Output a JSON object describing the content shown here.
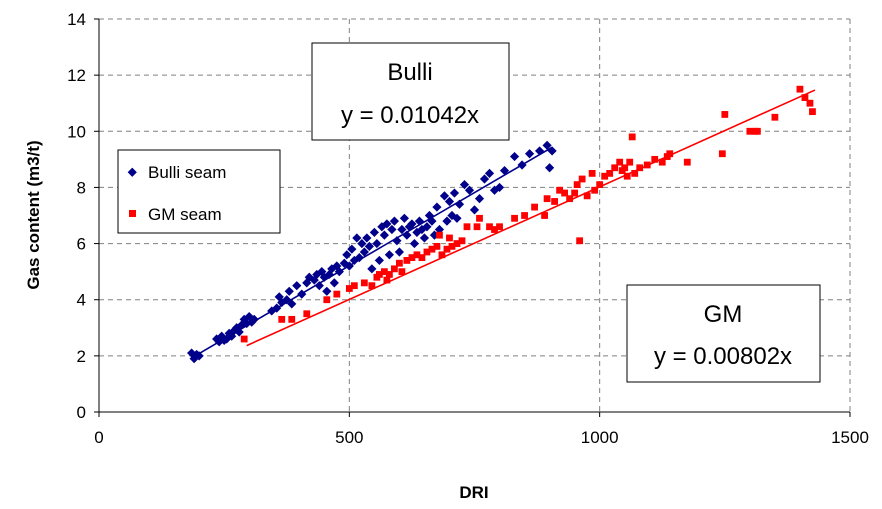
{
  "chart_data": {
    "type": "scatter",
    "xlabel": "DRI",
    "ylabel": "Gas content (m3/t)",
    "xlim": [
      0,
      1500
    ],
    "ylim": [
      0,
      14
    ],
    "x_ticks": [
      "0",
      "500",
      "1000",
      "1500"
    ],
    "y_ticks": [
      "0",
      "2",
      "4",
      "6",
      "8",
      "10",
      "12",
      "14"
    ],
    "grid": "dashed",
    "legend_position": "left",
    "series": [
      {
        "name": "Bulli seam",
        "marker": "diamond",
        "color": "#00008B",
        "trendline": {
          "slope": 0.01042,
          "x_range": [
            185,
            905
          ]
        },
        "points": [
          [
            185,
            2.1
          ],
          [
            190,
            1.9
          ],
          [
            195,
            2.05
          ],
          [
            200,
            2.0
          ],
          [
            235,
            2.6
          ],
          [
            240,
            2.5
          ],
          [
            245,
            2.7
          ],
          [
            250,
            2.55
          ],
          [
            255,
            2.6
          ],
          [
            260,
            2.8
          ],
          [
            265,
            2.7
          ],
          [
            270,
            2.9
          ],
          [
            275,
            3.0
          ],
          [
            280,
            2.85
          ],
          [
            285,
            3.1
          ],
          [
            290,
            3.3
          ],
          [
            295,
            3.15
          ],
          [
            300,
            3.4
          ],
          [
            305,
            3.2
          ],
          [
            310,
            3.3
          ],
          [
            345,
            3.6
          ],
          [
            355,
            3.7
          ],
          [
            360,
            4.1
          ],
          [
            365,
            3.9
          ],
          [
            375,
            4.0
          ],
          [
            380,
            4.3
          ],
          [
            385,
            3.85
          ],
          [
            395,
            4.5
          ],
          [
            405,
            4.2
          ],
          [
            415,
            4.6
          ],
          [
            420,
            4.8
          ],
          [
            430,
            4.7
          ],
          [
            435,
            4.9
          ],
          [
            440,
            4.5
          ],
          [
            445,
            5.0
          ],
          [
            450,
            4.8
          ],
          [
            455,
            4.3
          ],
          [
            460,
            4.9
          ],
          [
            465,
            5.1
          ],
          [
            470,
            4.6
          ],
          [
            475,
            5.2
          ],
          [
            480,
            5.0
          ],
          [
            490,
            5.3
          ],
          [
            495,
            5.6
          ],
          [
            500,
            5.2
          ],
          [
            505,
            5.8
          ],
          [
            510,
            5.4
          ],
          [
            515,
            6.2
          ],
          [
            520,
            5.5
          ],
          [
            525,
            6.0
          ],
          [
            530,
            5.7
          ],
          [
            535,
            6.2
          ],
          [
            540,
            5.9
          ],
          [
            545,
            5.1
          ],
          [
            550,
            6.4
          ],
          [
            555,
            6.0
          ],
          [
            560,
            5.4
          ],
          [
            565,
            6.6
          ],
          [
            570,
            6.3
          ],
          [
            575,
            6.7
          ],
          [
            580,
            5.6
          ],
          [
            585,
            6.5
          ],
          [
            590,
            6.8
          ],
          [
            595,
            6.1
          ],
          [
            600,
            5.7
          ],
          [
            605,
            6.5
          ],
          [
            610,
            6.9
          ],
          [
            615,
            6.3
          ],
          [
            620,
            6.6
          ],
          [
            625,
            6.7
          ],
          [
            630,
            6.0
          ],
          [
            635,
            6.4
          ],
          [
            640,
            6.8
          ],
          [
            645,
            6.5
          ],
          [
            650,
            6.2
          ],
          [
            655,
            6.6
          ],
          [
            660,
            7.0
          ],
          [
            665,
            6.8
          ],
          [
            670,
            6.3
          ],
          [
            675,
            7.3
          ],
          [
            680,
            6.5
          ],
          [
            690,
            7.7
          ],
          [
            695,
            6.8
          ],
          [
            700,
            7.5
          ],
          [
            705,
            7.0
          ],
          [
            710,
            7.8
          ],
          [
            715,
            6.9
          ],
          [
            720,
            7.4
          ],
          [
            730,
            8.1
          ],
          [
            740,
            7.9
          ],
          [
            750,
            7.2
          ],
          [
            760,
            7.6
          ],
          [
            770,
            8.3
          ],
          [
            780,
            8.5
          ],
          [
            790,
            7.9
          ],
          [
            800,
            8.0
          ],
          [
            810,
            8.6
          ],
          [
            830,
            9.1
          ],
          [
            845,
            8.8
          ],
          [
            860,
            9.2
          ],
          [
            880,
            9.3
          ],
          [
            895,
            9.5
          ],
          [
            900,
            8.7
          ],
          [
            905,
            9.3
          ]
        ]
      },
      {
        "name": "GM seam",
        "marker": "square",
        "color": "#FF0000",
        "trendline": {
          "slope": 0.00802,
          "x_range": [
            295,
            1430
          ]
        },
        "points": [
          [
            290,
            2.6
          ],
          [
            365,
            3.3
          ],
          [
            385,
            3.3
          ],
          [
            415,
            3.5
          ],
          [
            455,
            4.0
          ],
          [
            475,
            4.2
          ],
          [
            500,
            4.4
          ],
          [
            510,
            4.5
          ],
          [
            530,
            4.6
          ],
          [
            545,
            4.5
          ],
          [
            555,
            4.8
          ],
          [
            560,
            4.9
          ],
          [
            570,
            5.0
          ],
          [
            575,
            4.7
          ],
          [
            580,
            4.9
          ],
          [
            590,
            5.1
          ],
          [
            600,
            5.3
          ],
          [
            605,
            5.0
          ],
          [
            615,
            5.4
          ],
          [
            625,
            5.5
          ],
          [
            635,
            5.6
          ],
          [
            645,
            5.5
          ],
          [
            655,
            5.7
          ],
          [
            665,
            5.8
          ],
          [
            675,
            5.9
          ],
          [
            680,
            6.3
          ],
          [
            685,
            5.6
          ],
          [
            695,
            5.8
          ],
          [
            700,
            6.2
          ],
          [
            705,
            5.9
          ],
          [
            715,
            6.0
          ],
          [
            725,
            6.1
          ],
          [
            735,
            6.6
          ],
          [
            755,
            6.6
          ],
          [
            760,
            6.9
          ],
          [
            780,
            6.6
          ],
          [
            790,
            6.5
          ],
          [
            800,
            6.6
          ],
          [
            830,
            6.9
          ],
          [
            850,
            7.0
          ],
          [
            870,
            7.3
          ],
          [
            890,
            7.0
          ],
          [
            895,
            7.6
          ],
          [
            910,
            7.5
          ],
          [
            920,
            7.9
          ],
          [
            930,
            7.8
          ],
          [
            940,
            7.6
          ],
          [
            950,
            7.8
          ],
          [
            955,
            8.1
          ],
          [
            960,
            6.1
          ],
          [
            965,
            8.3
          ],
          [
            975,
            7.7
          ],
          [
            985,
            8.5
          ],
          [
            990,
            7.9
          ],
          [
            1000,
            8.1
          ],
          [
            1010,
            8.4
          ],
          [
            1020,
            8.5
          ],
          [
            1030,
            8.7
          ],
          [
            1040,
            8.9
          ],
          [
            1045,
            8.6
          ],
          [
            1050,
            8.7
          ],
          [
            1055,
            8.4
          ],
          [
            1060,
            8.9
          ],
          [
            1065,
            9.8
          ],
          [
            1070,
            8.5
          ],
          [
            1080,
            8.7
          ],
          [
            1095,
            8.8
          ],
          [
            1110,
            9.0
          ],
          [
            1125,
            8.9
          ],
          [
            1135,
            9.1
          ],
          [
            1140,
            9.2
          ],
          [
            1175,
            8.9
          ],
          [
            1245,
            9.2
          ],
          [
            1250,
            10.6
          ],
          [
            1300,
            10.0
          ],
          [
            1310,
            10.0
          ],
          [
            1315,
            10.0
          ],
          [
            1350,
            10.5
          ],
          [
            1400,
            11.5
          ],
          [
            1410,
            11.2
          ],
          [
            1420,
            11.0
          ],
          [
            1425,
            10.7
          ]
        ]
      }
    ],
    "annotations": [
      {
        "id": "bulli",
        "lines": [
          "Bulli",
          "y = 0.01042x"
        ]
      },
      {
        "id": "gm",
        "lines": [
          "GM",
          "y = 0.00802x"
        ]
      }
    ]
  }
}
